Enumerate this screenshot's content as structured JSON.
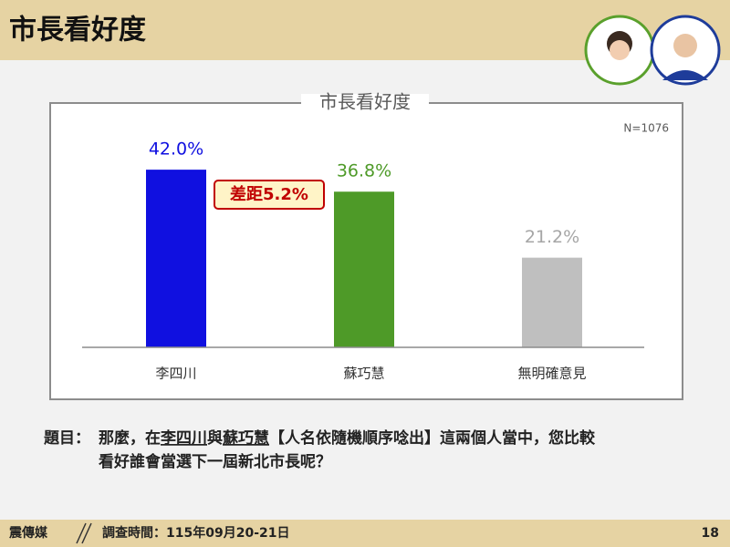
{
  "header": {
    "title": "市長看好度"
  },
  "chart_data": {
    "type": "bar",
    "title": "市長看好度",
    "note": "N=1076",
    "categories": [
      "李四川",
      "蘇巧慧",
      "無明確意見"
    ],
    "values": [
      42.0,
      36.8,
      21.2
    ],
    "value_labels": [
      "42.0%",
      "36.8%",
      "21.2%"
    ],
    "colors": [
      "#1010e0",
      "#4e9a28",
      "#bfbfbf"
    ],
    "label_colors": [
      "#1010e0",
      "#4e9a28",
      "#a6a6a6"
    ],
    "annotation": "差距5.2%"
  },
  "question": {
    "label": "題目：",
    "parts": [
      "那麼，在",
      "李四川",
      "與",
      "蘇巧慧",
      "【人名依隨機順序唸出】這兩個人當中，您比較",
      "看好誰會當選下一屆新北市長呢？"
    ]
  },
  "footer": {
    "source": "震傳媒",
    "date": "調查時間：115年09月20-21日",
    "page": "18"
  }
}
